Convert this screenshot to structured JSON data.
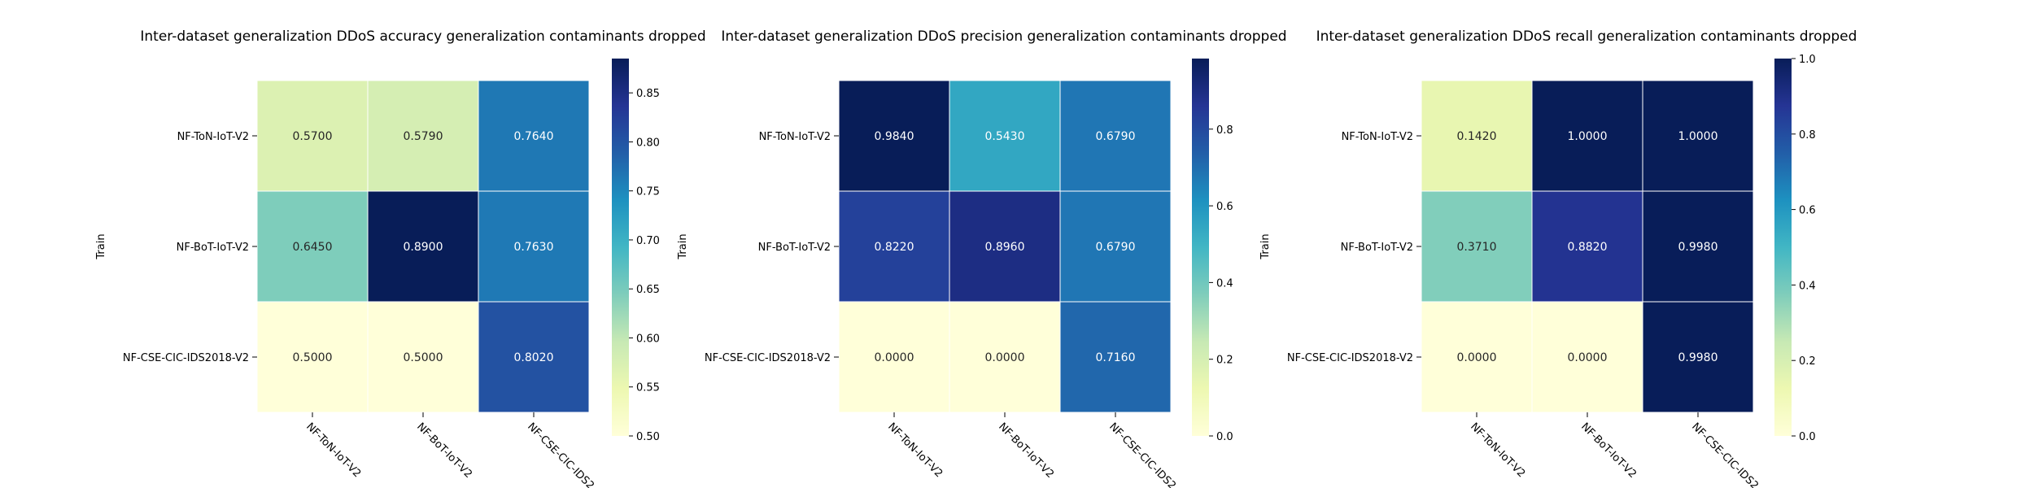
{
  "chart_data": [
    {
      "type": "heatmap",
      "title": "Inter-dataset generalization DDoS accuracy generalization contaminants dropped",
      "ylabel": "Train",
      "xlabel": "",
      "row_labels": [
        "NF-ToN-IoT-V2",
        "NF-BoT-IoT-V2",
        "NF-CSE-CIC-IDS2018-V2"
      ],
      "col_labels": [
        "NF-ToN-IoT-V2",
        "NF-BoT-IoT-V2",
        "NF-CSE-CIC-IDS2"
      ],
      "values": [
        [
          0.57,
          0.579,
          0.764
        ],
        [
          0.645,
          0.89,
          0.763
        ],
        [
          0.5,
          0.5,
          0.802
        ]
      ],
      "value_labels": [
        [
          "0.5700",
          "0.5790",
          "0.7640"
        ],
        [
          "0.6450",
          "0.8900",
          "0.7630"
        ],
        [
          "0.5000",
          "0.5000",
          "0.8020"
        ]
      ],
      "vmin": 0.5,
      "vmax": 0.885,
      "colorbar_ticks": [
        "0.50",
        "0.55",
        "0.60",
        "0.65",
        "0.70",
        "0.75",
        "0.80",
        "0.85"
      ],
      "colormap": "YlGnBu"
    },
    {
      "type": "heatmap",
      "title": "Inter-dataset generalization DDoS precision generalization contaminants dropped",
      "ylabel": "Train",
      "xlabel": "",
      "row_labels": [
        "NF-ToN-IoT-V2",
        "NF-BoT-IoT-V2",
        "NF-CSE-CIC-IDS2018-V2"
      ],
      "col_labels": [
        "NF-ToN-IoT-V2",
        "NF-BoT-IoT-V2",
        "NF-CSE-CIC-IDS2"
      ],
      "values": [
        [
          0.984,
          0.543,
          0.679
        ],
        [
          0.822,
          0.896,
          0.679
        ],
        [
          0.0,
          0.0,
          0.716
        ]
      ],
      "value_labels": [
        [
          "0.9840",
          "0.5430",
          "0.6790"
        ],
        [
          "0.8220",
          "0.8960",
          "0.6790"
        ],
        [
          "0.0000",
          "0.0000",
          "0.7160"
        ]
      ],
      "vmin": 0.0,
      "vmax": 0.984,
      "colorbar_ticks": [
        "0.0",
        "0.2",
        "0.4",
        "0.6",
        "0.8"
      ],
      "colormap": "YlGnBu"
    },
    {
      "type": "heatmap",
      "title": "Inter-dataset generalization DDoS recall generalization contaminants dropped",
      "ylabel": "Train",
      "xlabel": "",
      "row_labels": [
        "NF-ToN-IoT-V2",
        "NF-BoT-IoT-V2",
        "NF-CSE-CIC-IDS2018-V2"
      ],
      "col_labels": [
        "NF-ToN-IoT-V2",
        "NF-BoT-IoT-V2",
        "NF-CSE-CIC-IDS2"
      ],
      "values": [
        [
          0.142,
          1.0,
          1.0
        ],
        [
          0.371,
          0.882,
          0.998
        ],
        [
          0.0,
          0.0,
          0.998
        ]
      ],
      "value_labels": [
        [
          "0.1420",
          "1.0000",
          "1.0000"
        ],
        [
          "0.3710",
          "0.8820",
          "0.9980"
        ],
        [
          "0.0000",
          "0.0000",
          "0.9980"
        ]
      ],
      "vmin": 0.0,
      "vmax": 1.0,
      "colorbar_ticks": [
        "0.0",
        "0.2",
        "0.4",
        "0.6",
        "0.8",
        "1.0"
      ],
      "colormap": "YlGnBu"
    }
  ]
}
